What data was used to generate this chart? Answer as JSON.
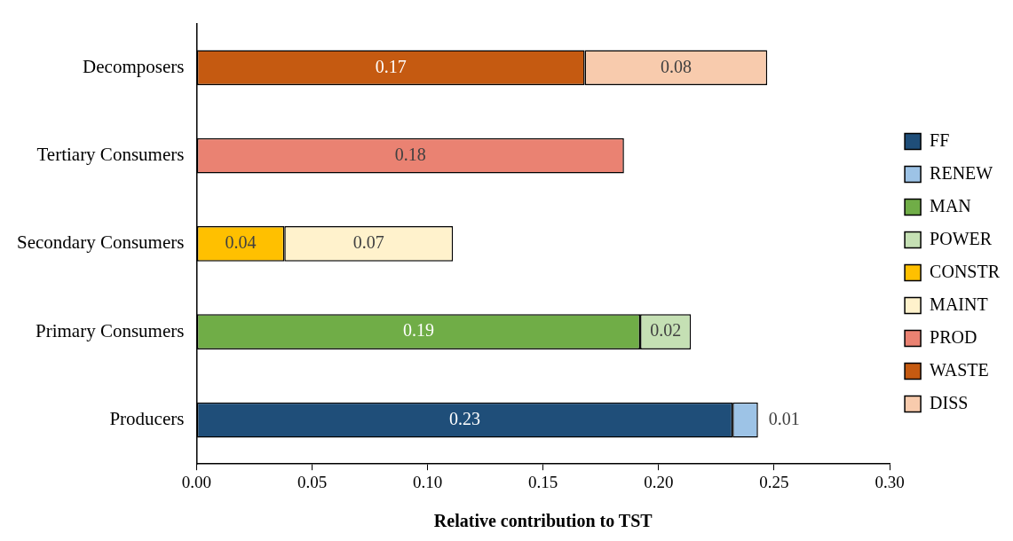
{
  "chart_data": {
    "type": "bar",
    "orientation": "horizontal",
    "stacked": true,
    "xlabel": "Relative contribution to TST",
    "categories": [
      "Decomposers",
      "Tertiary Consumers",
      "Secondary Consumers",
      "Primary Consumers",
      "Producers"
    ],
    "xlim": [
      0,
      0.3
    ],
    "xticks": [
      {
        "value": 0,
        "label": "0.00"
      },
      {
        "value": 0.05,
        "label": "0.05"
      },
      {
        "value": 0.1,
        "label": "0.10"
      },
      {
        "value": 0.15,
        "label": "0.15"
      },
      {
        "value": 0.2,
        "label": "0.20"
      },
      {
        "value": 0.25,
        "label": "0.25"
      },
      {
        "value": 0.3,
        "label": "0.30"
      }
    ],
    "grid": false,
    "legend": "right",
    "series": [
      {
        "name": "FF",
        "color": "#1f4e79",
        "values": [
          null,
          null,
          null,
          null,
          0.232
        ],
        "value_labels": [
          null,
          null,
          null,
          null,
          "0.23"
        ]
      },
      {
        "name": "RENEW",
        "color": "#9dc3e6",
        "values": [
          null,
          null,
          null,
          null,
          0.011
        ],
        "value_labels": [
          null,
          null,
          null,
          null,
          "0.01"
        ]
      },
      {
        "name": "MAN",
        "color": "#70ad47",
        "values": [
          null,
          null,
          null,
          0.192,
          null
        ],
        "value_labels": [
          null,
          null,
          null,
          "0.19",
          null
        ]
      },
      {
        "name": "POWER",
        "color": "#c5e0b4",
        "values": [
          null,
          null,
          null,
          0.022,
          null
        ],
        "value_labels": [
          null,
          null,
          null,
          "0.02",
          null
        ]
      },
      {
        "name": "CONSTR",
        "color": "#ffc000",
        "values": [
          null,
          null,
          0.038,
          null,
          null
        ],
        "value_labels": [
          null,
          null,
          "0.04",
          null,
          null
        ]
      },
      {
        "name": "MAINT",
        "color": "#fff2cc",
        "values": [
          null,
          null,
          0.073,
          null,
          null
        ],
        "value_labels": [
          null,
          null,
          "0.07",
          null,
          null
        ]
      },
      {
        "name": "PROD",
        "color": "#ea8272",
        "values": [
          null,
          0.185,
          null,
          null,
          null
        ],
        "value_labels": [
          null,
          "0.18",
          null,
          null,
          null
        ]
      },
      {
        "name": "WASTE",
        "color": "#c55a11",
        "values": [
          0.168,
          null,
          null,
          null,
          null
        ],
        "value_labels": [
          "0.17",
          null,
          null,
          null,
          null
        ]
      },
      {
        "name": "DISS",
        "color": "#f8cbad",
        "values": [
          0.079,
          null,
          null,
          null,
          null
        ],
        "value_labels": [
          "0.08",
          null,
          null,
          null,
          null
        ]
      }
    ]
  }
}
